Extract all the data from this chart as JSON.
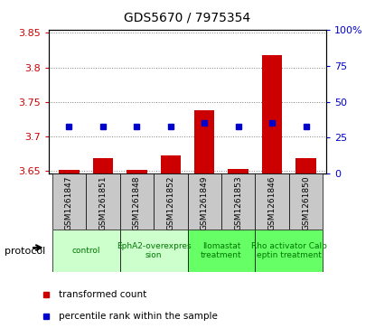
{
  "title": "GDS5670 / 7975354",
  "samples": [
    "GSM1261847",
    "GSM1261851",
    "GSM1261848",
    "GSM1261852",
    "GSM1261849",
    "GSM1261853",
    "GSM1261846",
    "GSM1261850"
  ],
  "transformed_counts": [
    3.651,
    3.668,
    3.651,
    3.672,
    3.737,
    3.652,
    3.818,
    3.668
  ],
  "bar_bottom": 3.645,
  "percentile_ranks": [
    33,
    33,
    33,
    33,
    35,
    33,
    35,
    33
  ],
  "ylim_left": [
    3.645,
    3.855
  ],
  "ylim_right": [
    0,
    100
  ],
  "yticks_left": [
    3.65,
    3.7,
    3.75,
    3.8,
    3.85
  ],
  "ytick_labels_left": [
    "3.65",
    "3.7",
    "3.75",
    "3.8",
    "3.85"
  ],
  "yticks_right": [
    0,
    25,
    50,
    75,
    100
  ],
  "ytick_labels_right": [
    "0",
    "25",
    "50",
    "75",
    "100%"
  ],
  "protocols": [
    {
      "label": "control",
      "span": [
        0,
        1
      ],
      "color": "#ccffcc"
    },
    {
      "label": "EphA2-overexpres\nsion",
      "span": [
        2,
        3
      ],
      "color": "#ccffcc"
    },
    {
      "label": "Ilomastat\ntreatment",
      "span": [
        4,
        5
      ],
      "color": "#66ff66"
    },
    {
      "label": "Rho activator Calp\neptin treatment",
      "span": [
        6,
        7
      ],
      "color": "#66ff66"
    }
  ],
  "bar_color": "#cc0000",
  "dot_color": "#0000cc",
  "bar_width": 0.6,
  "left_axis_color": "#cc0000",
  "right_axis_color": "#0000cc",
  "sample_bg_color": "#c8c8c8",
  "legend_items": [
    {
      "label": "transformed count",
      "color": "#cc0000"
    },
    {
      "label": "percentile rank within the sample",
      "color": "#0000cc"
    }
  ]
}
